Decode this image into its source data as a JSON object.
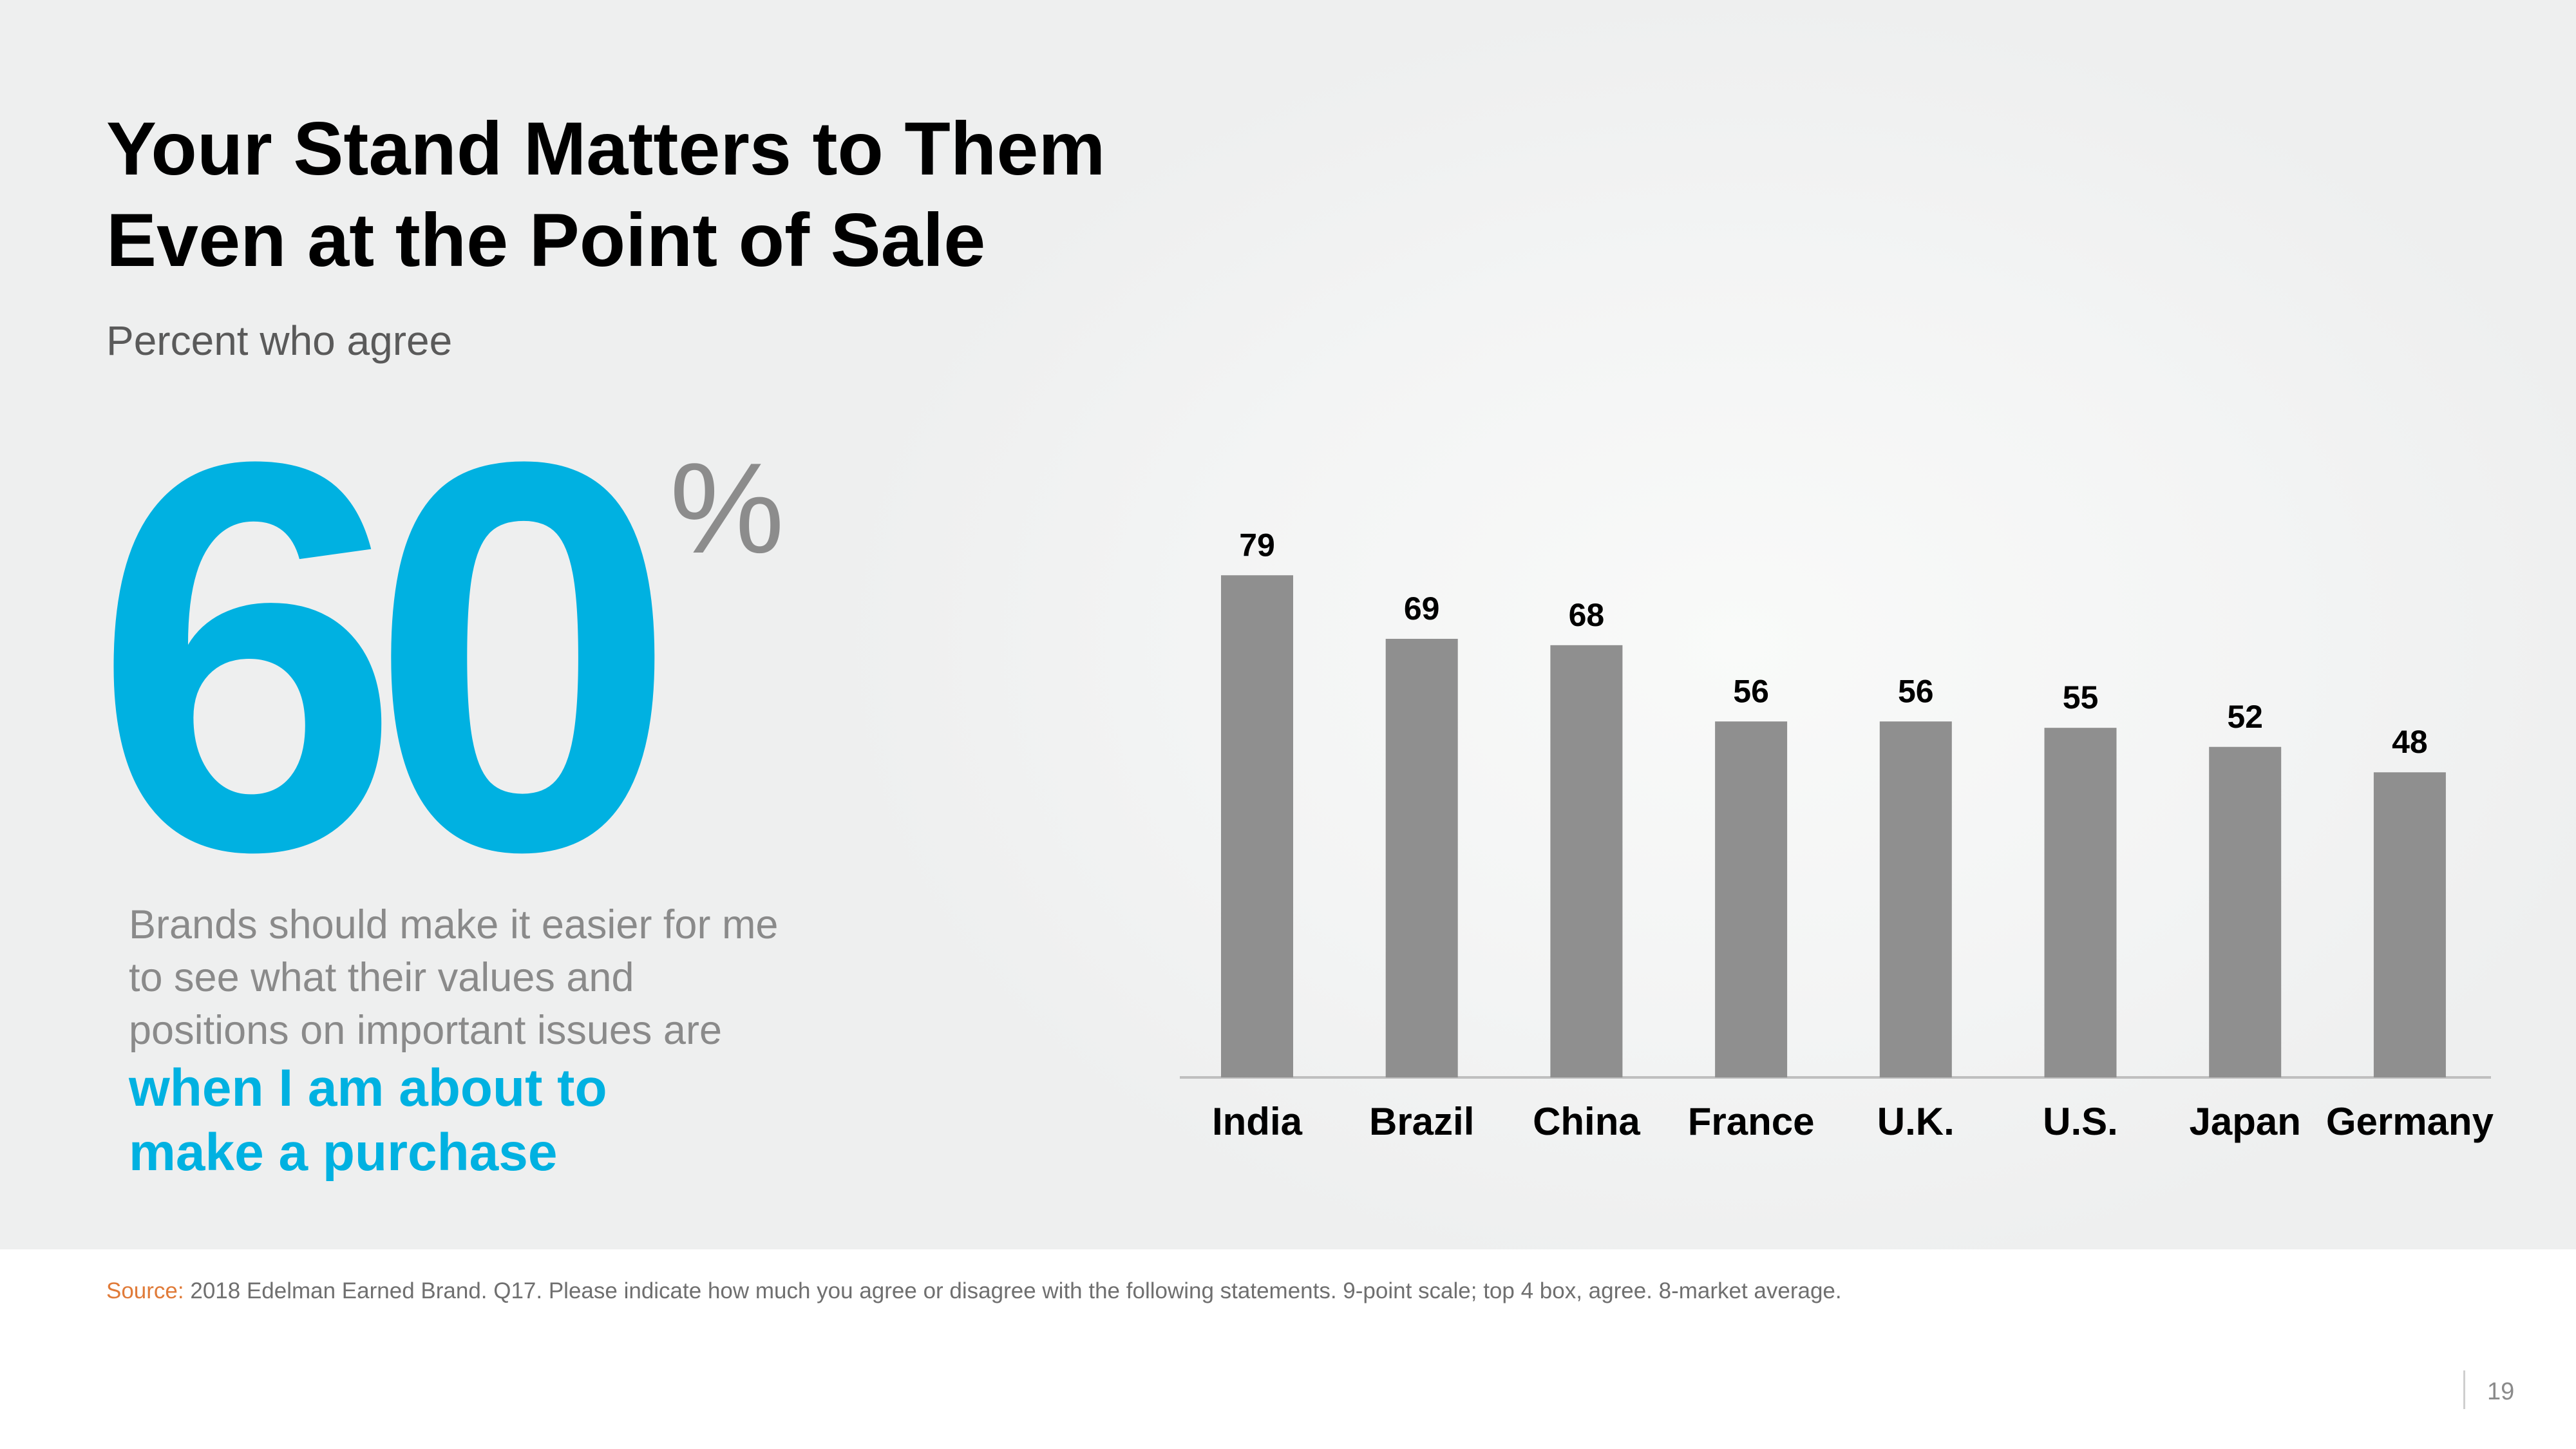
{
  "slide": {
    "title_lines": [
      "Your Stand Matters to Them",
      "Even at the Point of Sale"
    ],
    "subtitle": "Percent who agree",
    "big_number": "60",
    "big_number_suffix": "%",
    "statement": "Brands should make it easier for me to see what their values and positions on important issues are",
    "highlight_lines": [
      "when I am about to",
      "make a purchase"
    ],
    "source_label": "Source:",
    "source_text": "2018 Edelman Earned Brand. Q17. Please indicate how much you agree or disagree with the following statements. 9-point scale; top 4 box, agree. 8-market average.",
    "page_number": "19"
  },
  "colors": {
    "accent": "#00b1e1",
    "bar": "#8f8f8f",
    "text": "#000000"
  },
  "chart_data": {
    "type": "bar",
    "categories": [
      "India",
      "Brazil",
      "China",
      "France",
      "U.K.",
      "U.S.",
      "Japan",
      "Germany"
    ],
    "values": [
      79,
      69,
      68,
      56,
      56,
      55,
      52,
      48
    ],
    "title": "",
    "xlabel": "",
    "ylabel": "",
    "ylim": [
      0,
      100
    ],
    "grid": false,
    "data_labels": true
  }
}
